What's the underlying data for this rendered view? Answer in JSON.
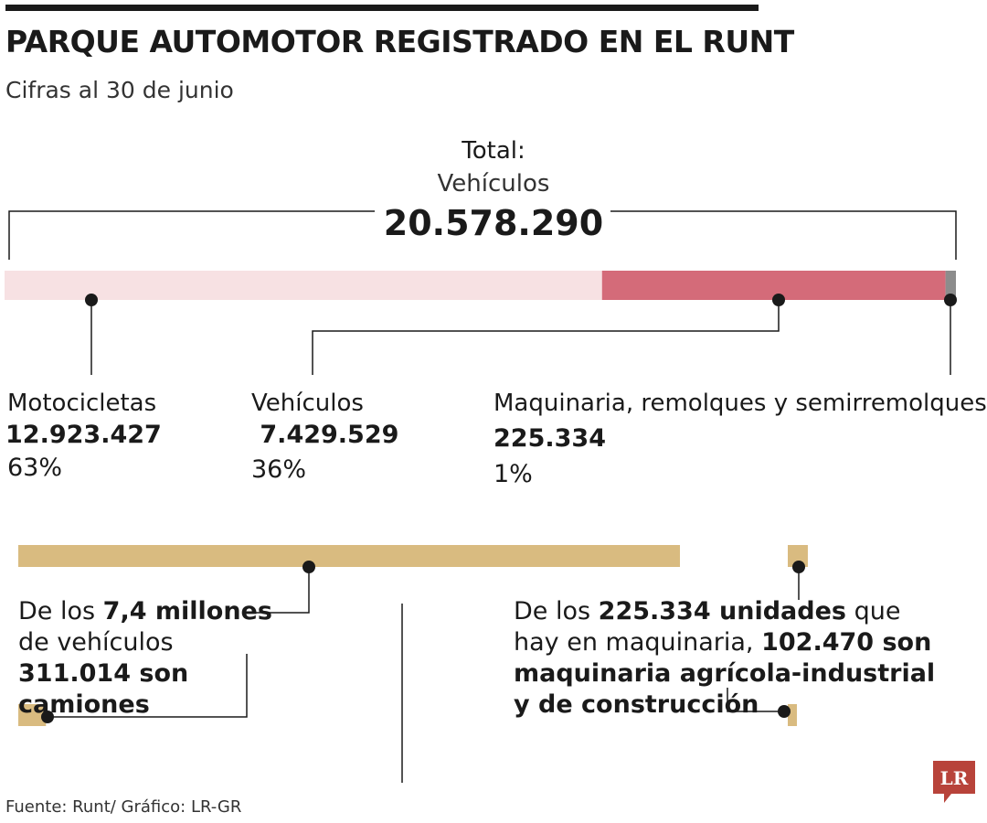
{
  "title": "PARQUE AUTOMOTOR REGISTRADO EN EL RUNT",
  "subtitle": "Cifras al 30 de junio",
  "total": {
    "label": "Total:",
    "sub": "Vehículos",
    "value": "20.578.290"
  },
  "colors": {
    "motos": "#f7e1e3",
    "vehiculos": "#d46b79",
    "maquinaria": "#8c8c8c",
    "gold": "#d9bb80",
    "ink": "#1a1a1a",
    "logo": "#b8433a"
  },
  "chart_data": {
    "type": "bar",
    "orientation": "horizontal-stacked",
    "total": 20578290,
    "series": [
      {
        "name": "Motocicletas",
        "value": 12923427,
        "display": "12.923.427",
        "pct": "63%"
      },
      {
        "name": "Vehículos",
        "value": 7429529,
        "display": " 7.429.529",
        "pct": "36%"
      },
      {
        "name": "Maquinaria, remolques y semirremolques",
        "value": 225334,
        "display": "225.334",
        "pct": "1%"
      }
    ],
    "breakdown": [
      {
        "of": "Vehículos",
        "total": 7429529,
        "part": 311014
      },
      {
        "of": "Maquinaria, remolques y semirremolques",
        "total": 225334,
        "part": 102470
      }
    ]
  },
  "notes": {
    "vehiculos": {
      "t1": "De los ",
      "b1": "7,4 millones",
      "t2": " de vehículos ",
      "b2": "311.014 son camiones"
    },
    "maquinaria": {
      "t1": "De los ",
      "b1": "225.334 unidades",
      "t2": " que hay en maquinaria, ",
      "b2": "102.470 son maquinaria agrícola-industrial y de construcción"
    }
  },
  "source": "Fuente: Runt/ Gráfico: LR-GR",
  "logo_text": "LR"
}
